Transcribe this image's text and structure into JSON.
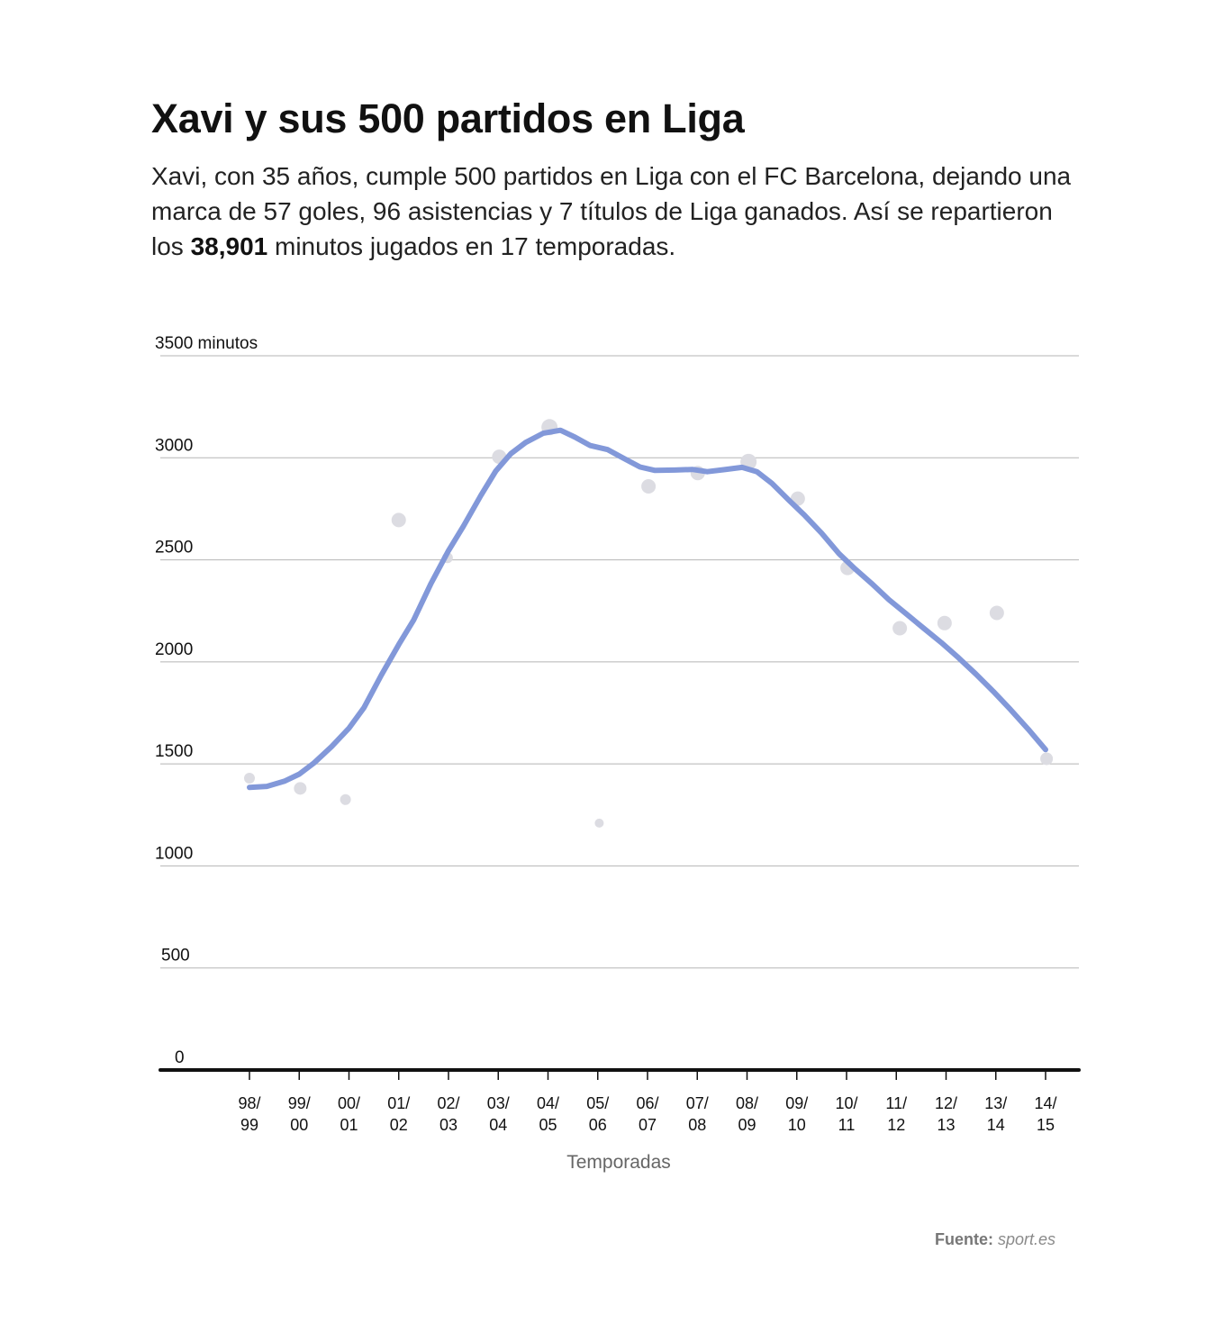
{
  "header": {
    "title": "Xavi y sus 500 partidos en Liga",
    "subtitle_part1": "Xavi, con 35 años, cumple 500 partidos en Liga con el FC Barcelona, dejando una marca de 57 goles, 96 asistencias y 7 títulos de Liga ganados. Así se repartieron los ",
    "subtitle_bold": "38,901",
    "subtitle_part2": " minutos jugados en 17 temporadas."
  },
  "source": {
    "label": "Fuente:",
    "name": "sport.es"
  },
  "colors": {
    "trend_line": "#8298d9",
    "points": "#dcdce2",
    "grid": "#b5b5b5",
    "baseline": "#111111",
    "axis_title": "#666666"
  },
  "chart_data": {
    "type": "scatter",
    "xlabel": "Temporadas",
    "ylabel": "",
    "ylim": [
      0,
      3500
    ],
    "y_ticks": [
      {
        "value": 3500,
        "label": "3500 minutos"
      },
      {
        "value": 3000,
        "label": "3000"
      },
      {
        "value": 2500,
        "label": "2500"
      },
      {
        "value": 2000,
        "label": "2000"
      },
      {
        "value": 1500,
        "label": "1500"
      },
      {
        "value": 1000,
        "label": "1000"
      },
      {
        "value": 500,
        "label": "500"
      },
      {
        "value": 0,
        "label": "0"
      }
    ],
    "grid": true,
    "categories": [
      {
        "top": "98/",
        "bottom": "99"
      },
      {
        "top": "99/",
        "bottom": "00"
      },
      {
        "top": "00/",
        "bottom": "01"
      },
      {
        "top": "01/",
        "bottom": "02"
      },
      {
        "top": "02/",
        "bottom": "03"
      },
      {
        "top": "03/",
        "bottom": "04"
      },
      {
        "top": "04/",
        "bottom": "05"
      },
      {
        "top": "05/",
        "bottom": "06"
      },
      {
        "top": "06/",
        "bottom": "07"
      },
      {
        "top": "07/",
        "bottom": "08"
      },
      {
        "top": "08/",
        "bottom": "09"
      },
      {
        "top": "09/",
        "bottom": "10"
      },
      {
        "top": "10/",
        "bottom": "11"
      },
      {
        "top": "11/",
        "bottom": "12"
      },
      {
        "top": "12/",
        "bottom": "13"
      },
      {
        "top": "13/",
        "bottom": "14"
      },
      {
        "top": "14/",
        "bottom": "15"
      }
    ],
    "points": [
      {
        "x": 0,
        "y": 1430,
        "r": 6
      },
      {
        "x": 1.02,
        "y": 1380,
        "r": 7
      },
      {
        "x": 1.93,
        "y": 1325,
        "r": 6
      },
      {
        "x": 3.0,
        "y": 2695,
        "r": 8
      },
      {
        "x": 3.98,
        "y": 2510,
        "r": 6
      },
      {
        "x": 5.02,
        "y": 3005,
        "r": 8
      },
      {
        "x": 6.03,
        "y": 3150,
        "r": 9
      },
      {
        "x": 7.03,
        "y": 1210,
        "r": 5
      },
      {
        "x": 8.02,
        "y": 2860,
        "r": 8
      },
      {
        "x": 9.01,
        "y": 2925,
        "r": 8
      },
      {
        "x": 10.03,
        "y": 2980,
        "r": 9
      },
      {
        "x": 11.02,
        "y": 2800,
        "r": 8
      },
      {
        "x": 12.02,
        "y": 2460,
        "r": 8
      },
      {
        "x": 13.07,
        "y": 2165,
        "r": 8
      },
      {
        "x": 13.97,
        "y": 2190,
        "r": 8
      },
      {
        "x": 15.02,
        "y": 2240,
        "r": 8
      },
      {
        "x": 16.02,
        "y": 1525,
        "r": 7
      }
    ],
    "trend": [
      {
        "x": 0,
        "y": 1385
      },
      {
        "x": 0.35,
        "y": 1390
      },
      {
        "x": 0.7,
        "y": 1415
      },
      {
        "x": 1.0,
        "y": 1450
      },
      {
        "x": 1.3,
        "y": 1505
      },
      {
        "x": 1.65,
        "y": 1585
      },
      {
        "x": 2.0,
        "y": 1675
      },
      {
        "x": 2.3,
        "y": 1775
      },
      {
        "x": 2.65,
        "y": 1935
      },
      {
        "x": 3.0,
        "y": 2085
      },
      {
        "x": 3.3,
        "y": 2205
      },
      {
        "x": 3.65,
        "y": 2385
      },
      {
        "x": 4.0,
        "y": 2545
      },
      {
        "x": 4.3,
        "y": 2665
      },
      {
        "x": 4.65,
        "y": 2815
      },
      {
        "x": 4.95,
        "y": 2935
      },
      {
        "x": 5.25,
        "y": 3020
      },
      {
        "x": 5.55,
        "y": 3075
      },
      {
        "x": 5.9,
        "y": 3120
      },
      {
        "x": 6.25,
        "y": 3135
      },
      {
        "x": 6.55,
        "y": 3100
      },
      {
        "x": 6.85,
        "y": 3060
      },
      {
        "x": 7.2,
        "y": 3040
      },
      {
        "x": 7.5,
        "y": 3000
      },
      {
        "x": 7.85,
        "y": 2955
      },
      {
        "x": 8.15,
        "y": 2938
      },
      {
        "x": 8.55,
        "y": 2940
      },
      {
        "x": 8.9,
        "y": 2943
      },
      {
        "x": 9.2,
        "y": 2932
      },
      {
        "x": 9.55,
        "y": 2942
      },
      {
        "x": 9.9,
        "y": 2953
      },
      {
        "x": 10.2,
        "y": 2932
      },
      {
        "x": 10.5,
        "y": 2875
      },
      {
        "x": 10.85,
        "y": 2790
      },
      {
        "x": 11.15,
        "y": 2720
      },
      {
        "x": 11.5,
        "y": 2630
      },
      {
        "x": 11.85,
        "y": 2530
      },
      {
        "x": 12.15,
        "y": 2460
      },
      {
        "x": 12.5,
        "y": 2385
      },
      {
        "x": 12.85,
        "y": 2305
      },
      {
        "x": 13.2,
        "y": 2235
      },
      {
        "x": 13.55,
        "y": 2165
      },
      {
        "x": 13.9,
        "y": 2095
      },
      {
        "x": 14.25,
        "y": 2020
      },
      {
        "x": 14.6,
        "y": 1940
      },
      {
        "x": 14.95,
        "y": 1855
      },
      {
        "x": 15.3,
        "y": 1765
      },
      {
        "x": 15.65,
        "y": 1670
      },
      {
        "x": 16.0,
        "y": 1570
      }
    ]
  }
}
